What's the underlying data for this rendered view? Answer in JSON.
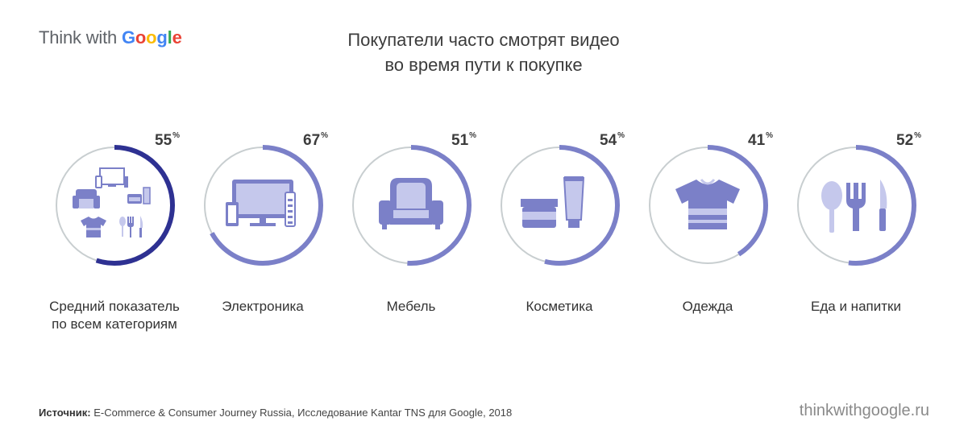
{
  "header": {
    "logo_think": "Think with",
    "logo_google_letters": [
      "G",
      "o",
      "o",
      "g",
      "l",
      "e"
    ],
    "logo_colors": [
      "#4285F4",
      "#EA4335",
      "#FBBC05",
      "#4285F4",
      "#34A853",
      "#EA4335"
    ],
    "title_line1": "Покупатели часто смотрят видео",
    "title_line2": "во время пути к покупке"
  },
  "chart_data": {
    "type": "donut",
    "title": "Покупатели часто смотрят видео во время пути к покупке",
    "unit": "%",
    "categories": [
      "Средний показатель\nпо всем категориям",
      "Электроника",
      "Мебель",
      "Косметика",
      "Одежда",
      "Еда и напитки"
    ],
    "values": [
      55,
      67,
      51,
      54,
      41,
      52
    ],
    "value_labels": [
      "55",
      "67",
      "51",
      "54",
      "41",
      "52"
    ],
    "icons": [
      "category-mix-icon",
      "electronics-icon",
      "armchair-icon",
      "cosmetics-icon",
      "t-shirt-icon",
      "utensils-icon"
    ],
    "colors": {
      "track": "#c8ced0",
      "average_arc": "#2e3192",
      "category_arc": "#7b80c8",
      "icon_main": "#7b80c8",
      "icon_light": "#c5c8ec"
    }
  },
  "footer": {
    "source_label": "Источник:",
    "source_text": " E-Commerce & Consumer Journey Russia, Исследование Kantar TNS для Google, 2018",
    "site": "thinkwithgoogle.ru"
  }
}
